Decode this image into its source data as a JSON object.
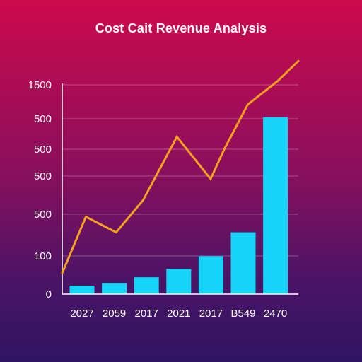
{
  "chart_data": {
    "type": "bar",
    "title": "Cost Cait Revenue Analysis",
    "categories": [
      "2027",
      "2059",
      "2017",
      "2021",
      "2017",
      "B549",
      "2470"
    ],
    "y_tick_labels": [
      "0",
      "100",
      "500",
      "500",
      "500",
      "500",
      "1500"
    ],
    "ylim": [
      0,
      1500
    ],
    "grid": true,
    "series": [
      {
        "type": "bar",
        "color": "#16d4f7",
        "values": [
          60,
          80,
          120,
          180,
          270,
          440,
          1260
        ]
      },
      {
        "type": "line",
        "color": "#f6a21e",
        "x": [
          0,
          0.7,
          1.6,
          2.4,
          3.4,
          4.4,
          4.8,
          5.5,
          6.4,
          7.0
        ],
        "values": [
          150,
          550,
          440,
          670,
          1120,
          820,
          1030,
          1350,
          1520,
          1660
        ]
      }
    ]
  }
}
